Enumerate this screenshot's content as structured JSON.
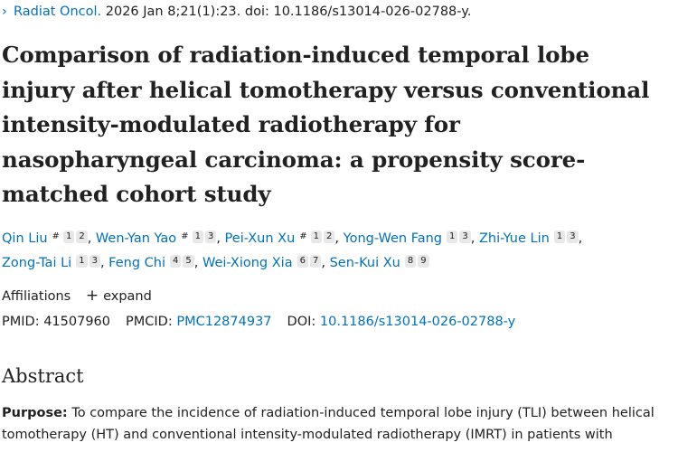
{
  "citation": {
    "chevron": "›",
    "journal": "Radiat Oncol.",
    "rest": " 2026 Jan 8;21(1):23. doi: 10.1186/s13014-026-02788-y."
  },
  "title_lines": [
    "Comparison of radiation-induced temporal lobe",
    "injury after helical tomotherapy versus conventional",
    "intensity-modulated radiotherapy for",
    "nasopharyngeal carcinoma: a propensity score-",
    "matched cohort study"
  ],
  "authors": [
    {
      "name": "Qin Liu",
      "equal": "#",
      "affils": [
        "1",
        "2"
      ]
    },
    {
      "name": "Wen-Yan Yao",
      "equal": "#",
      "affils": [
        "1",
        "3"
      ]
    },
    {
      "name": "Pei-Xun Xu",
      "equal": "#",
      "affils": [
        "1",
        "2"
      ]
    },
    {
      "name": "Yong-Wen Fang",
      "equal": "",
      "affils": [
        "1",
        "3"
      ]
    },
    {
      "name": "Zhi-Yue Lin",
      "equal": "",
      "affils": [
        "1",
        "3"
      ]
    },
    {
      "name": "Zong-Tai Li",
      "equal": "",
      "affils": [
        "1",
        "3"
      ]
    },
    {
      "name": "Feng Chi",
      "equal": "",
      "affils": [
        "4",
        "5"
      ]
    },
    {
      "name": "Wei-Xiong Xia",
      "equal": "",
      "affils": [
        "6",
        "7"
      ]
    },
    {
      "name": "Sen-Kui Xu",
      "equal": "",
      "affils": [
        "8",
        "9"
      ]
    }
  ],
  "affiliations": {
    "label": "Affiliations",
    "expand_icon": "plus-icon",
    "expand_label": "expand"
  },
  "identifiers": {
    "pmid_label": "PMID:",
    "pmid": "41507960",
    "pmcid_label": "PMCID:",
    "pmcid": "PMC12874937",
    "doi_label": "DOI:",
    "doi": "10.1186/s13014-026-02788-y"
  },
  "abstract": {
    "heading": "Abstract",
    "purpose_label": "Purpose:",
    "line1": " To compare the incidence of radiation-induced temporal lobe injury (TLI) between helical",
    "line2": "tomotherapy (HT) and conventional intensity-modulated radiotherapy (IMRT) in patients with"
  },
  "colors": {
    "link": "#0071bc",
    "text": "#212121",
    "badge_bg": "#e8e8e8"
  }
}
